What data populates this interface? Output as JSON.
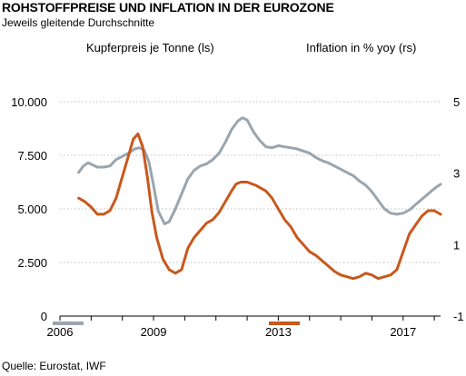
{
  "header": {
    "title": "ROHSTOFFPREISE UND INFLATION IN DER EUROZONE",
    "subtitle": "Jeweils gleitende Durchschnitte"
  },
  "source": "Quelle: Eurostat, IWF",
  "chart_data": {
    "type": "line",
    "left_axis_label": "Kupferpreis je Tonne (ls)",
    "right_axis_label": "Inflation in % yoy (rs)",
    "y_left": {
      "min": 0,
      "max": 10000,
      "ticks": [
        0,
        2500,
        5000,
        7500,
        10000
      ],
      "tick_labels": [
        "0",
        "2.500",
        "5.000",
        "7.500",
        "10.000"
      ]
    },
    "y_right": {
      "min": -1,
      "max": 5,
      "ticks": [
        -1,
        1,
        3,
        5
      ],
      "tick_labels": [
        "-1",
        "1",
        "3",
        "5"
      ]
    },
    "x_axis": {
      "min": 2006.0,
      "max": 2018.2,
      "ticks": [
        2006,
        2009,
        2013,
        2017
      ],
      "tick_labels": [
        "2006",
        "2009",
        "2013",
        "2017"
      ]
    },
    "series": [
      {
        "axis": "left",
        "color": "#9aa5ae",
        "points": [
          [
            2006.6,
            6700
          ],
          [
            2006.75,
            7000
          ],
          [
            2006.9,
            7150
          ],
          [
            2007.05,
            7050
          ],
          [
            2007.2,
            6950
          ],
          [
            2007.4,
            6950
          ],
          [
            2007.6,
            7000
          ],
          [
            2007.8,
            7300
          ],
          [
            2008.0,
            7450
          ],
          [
            2008.2,
            7600
          ],
          [
            2008.4,
            7800
          ],
          [
            2008.55,
            7850
          ],
          [
            2008.7,
            7750
          ],
          [
            2008.85,
            7200
          ],
          [
            2009.0,
            6100
          ],
          [
            2009.15,
            4900
          ],
          [
            2009.35,
            4300
          ],
          [
            2009.5,
            4400
          ],
          [
            2009.7,
            5000
          ],
          [
            2009.9,
            5700
          ],
          [
            2010.1,
            6400
          ],
          [
            2010.3,
            6800
          ],
          [
            2010.5,
            7000
          ],
          [
            2010.7,
            7100
          ],
          [
            2010.9,
            7300
          ],
          [
            2011.1,
            7600
          ],
          [
            2011.3,
            8100
          ],
          [
            2011.5,
            8700
          ],
          [
            2011.7,
            9100
          ],
          [
            2011.85,
            9250
          ],
          [
            2012.0,
            9150
          ],
          [
            2012.2,
            8600
          ],
          [
            2012.4,
            8200
          ],
          [
            2012.6,
            7900
          ],
          [
            2012.8,
            7850
          ],
          [
            2013.0,
            7950
          ],
          [
            2013.2,
            7900
          ],
          [
            2013.4,
            7850
          ],
          [
            2013.6,
            7800
          ],
          [
            2013.8,
            7700
          ],
          [
            2014.0,
            7600
          ],
          [
            2014.2,
            7400
          ],
          [
            2014.4,
            7250
          ],
          [
            2014.6,
            7150
          ],
          [
            2014.8,
            7000
          ],
          [
            2015.0,
            6850
          ],
          [
            2015.2,
            6700
          ],
          [
            2015.4,
            6550
          ],
          [
            2015.6,
            6300
          ],
          [
            2015.8,
            6100
          ],
          [
            2016.0,
            5800
          ],
          [
            2016.2,
            5400
          ],
          [
            2016.4,
            5000
          ],
          [
            2016.6,
            4800
          ],
          [
            2016.8,
            4750
          ],
          [
            2017.0,
            4800
          ],
          [
            2017.2,
            4950
          ],
          [
            2017.4,
            5200
          ],
          [
            2017.6,
            5450
          ],
          [
            2017.8,
            5700
          ],
          [
            2018.0,
            5950
          ],
          [
            2018.2,
            6150
          ]
        ]
      },
      {
        "axis": "right",
        "color": "#c8581c",
        "points": [
          [
            2006.6,
            2.3
          ],
          [
            2006.8,
            2.2
          ],
          [
            2007.0,
            2.05
          ],
          [
            2007.2,
            1.85
          ],
          [
            2007.4,
            1.85
          ],
          [
            2007.6,
            1.95
          ],
          [
            2007.8,
            2.3
          ],
          [
            2008.0,
            2.9
          ],
          [
            2008.2,
            3.5
          ],
          [
            2008.35,
            3.95
          ],
          [
            2008.5,
            4.1
          ],
          [
            2008.65,
            3.75
          ],
          [
            2008.8,
            2.9
          ],
          [
            2008.95,
            1.9
          ],
          [
            2009.1,
            1.2
          ],
          [
            2009.3,
            0.6
          ],
          [
            2009.5,
            0.3
          ],
          [
            2009.7,
            0.2
          ],
          [
            2009.9,
            0.3
          ],
          [
            2010.1,
            0.9
          ],
          [
            2010.3,
            1.2
          ],
          [
            2010.5,
            1.4
          ],
          [
            2010.7,
            1.6
          ],
          [
            2010.9,
            1.7
          ],
          [
            2011.1,
            1.9
          ],
          [
            2011.3,
            2.2
          ],
          [
            2011.5,
            2.5
          ],
          [
            2011.65,
            2.7
          ],
          [
            2011.8,
            2.75
          ],
          [
            2012.0,
            2.75
          ],
          [
            2012.3,
            2.65
          ],
          [
            2012.6,
            2.5
          ],
          [
            2012.8,
            2.3
          ],
          [
            2013.0,
            2.0
          ],
          [
            2013.2,
            1.7
          ],
          [
            2013.4,
            1.5
          ],
          [
            2013.6,
            1.2
          ],
          [
            2013.8,
            1.0
          ],
          [
            2014.0,
            0.8
          ],
          [
            2014.2,
            0.7
          ],
          [
            2014.4,
            0.55
          ],
          [
            2014.6,
            0.4
          ],
          [
            2014.8,
            0.25
          ],
          [
            2015.0,
            0.15
          ],
          [
            2015.2,
            0.1
          ],
          [
            2015.4,
            0.05
          ],
          [
            2015.6,
            0.1
          ],
          [
            2015.8,
            0.2
          ],
          [
            2016.0,
            0.15
          ],
          [
            2016.2,
            0.05
          ],
          [
            2016.4,
            0.1
          ],
          [
            2016.6,
            0.15
          ],
          [
            2016.8,
            0.3
          ],
          [
            2017.0,
            0.8
          ],
          [
            2017.2,
            1.3
          ],
          [
            2017.4,
            1.55
          ],
          [
            2017.6,
            1.8
          ],
          [
            2017.8,
            1.95
          ],
          [
            2018.0,
            1.95
          ],
          [
            2018.2,
            1.85
          ]
        ]
      }
    ],
    "legend": {
      "placement": "bottom",
      "swatches": [
        "#9aa5ae",
        "#c8581c"
      ]
    }
  }
}
